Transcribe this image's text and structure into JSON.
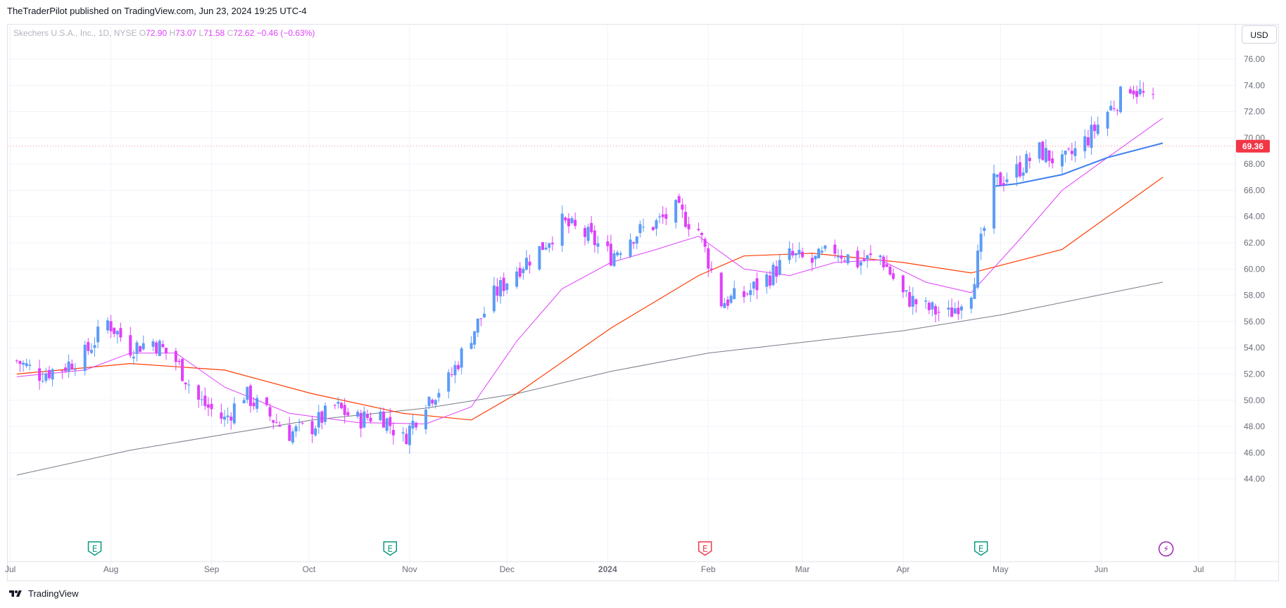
{
  "header": {
    "published": "TheTraderPilot published on TradingView.com, Jun 23, 2024 19:25 UTC-4"
  },
  "legend": {
    "symbol": "Skechers U.S.A., Inc., 1D, NYSE",
    "open_label": "O",
    "open": "72.90",
    "high_label": "H",
    "high": "73.07",
    "low_label": "L",
    "low": "71.58",
    "close_label": "C",
    "close": "72.62",
    "change": "−0.46 (−0.63%)"
  },
  "currency_button": "USD",
  "price_marker": "69.36",
  "footer": {
    "brand": "TradingView"
  },
  "colors": {
    "up": "#5b9cf6",
    "down": "#e040fb",
    "ma_fast": "#e040fb",
    "ma_blue": "#3d7ff0",
    "ma_mid": "#ff3d00",
    "ma_slow": "#787b86",
    "price_marker": "#f23645"
  },
  "events": [
    {
      "type": "earnings",
      "label": "E",
      "x_month": "Jul 2023 end",
      "color": "#089981"
    },
    {
      "type": "earnings",
      "label": "E",
      "x_month": "Oct 2023 end",
      "color": "#089981"
    },
    {
      "type": "earnings",
      "label": "E",
      "x_month": "Jan 2024 end",
      "color": "#f23645"
    },
    {
      "type": "earnings",
      "label": "E",
      "x_month": "Apr 2024 end",
      "color": "#089981"
    },
    {
      "type": "dividend-flash",
      "label": "⚡",
      "x_month": "Jun 2024 end",
      "color": "#9c27b0"
    }
  ],
  "chart_data": {
    "type": "candlestick",
    "title": "",
    "x_tick_labels": [
      "Jul",
      "Aug",
      "Sep",
      "Oct",
      "Nov",
      "Dec",
      "2024",
      "Feb",
      "Mar",
      "Apr",
      "May",
      "Jun",
      "Jul"
    ],
    "y_tick_labels": [
      "44.00",
      "46.00",
      "48.00",
      "50.00",
      "52.00",
      "54.00",
      "56.00",
      "58.00",
      "60.00",
      "62.00",
      "64.00",
      "66.00",
      "68.00",
      "70.00",
      "72.00",
      "74.00",
      "76.00"
    ],
    "ylim": [
      43.5,
      77.5
    ],
    "grid": true,
    "series": [
      {
        "name": "",
        "kind": "price",
        "approx_close_path": [
          [
            "2023-07-03",
            53.0
          ],
          [
            "2023-07-10",
            52.0
          ],
          [
            "2023-07-17",
            52.5
          ],
          [
            "2023-07-24",
            53.5
          ],
          [
            "2023-07-31",
            56.0
          ],
          [
            "2023-08-07",
            54.0
          ],
          [
            "2023-08-14",
            54.5
          ],
          [
            "2023-08-21",
            53.0
          ],
          [
            "2023-08-28",
            50.0
          ],
          [
            "2023-09-05",
            48.5
          ],
          [
            "2023-09-11",
            50.5
          ],
          [
            "2023-09-18",
            49.0
          ],
          [
            "2023-09-25",
            47.5
          ],
          [
            "2023-10-02",
            48.0
          ],
          [
            "2023-10-09",
            49.5
          ],
          [
            "2023-10-16",
            48.5
          ],
          [
            "2023-10-23",
            49.0
          ],
          [
            "2023-10-30",
            47.0
          ],
          [
            "2023-11-06",
            50.0
          ],
          [
            "2023-11-13",
            51.5
          ],
          [
            "2023-11-20",
            55.0
          ],
          [
            "2023-11-27",
            58.0
          ],
          [
            "2023-12-04",
            60.0
          ],
          [
            "2023-12-11",
            61.5
          ],
          [
            "2023-12-18",
            63.5
          ],
          [
            "2023-12-26",
            62.5
          ],
          [
            "2024-01-02",
            61.0
          ],
          [
            "2024-01-08",
            62.5
          ],
          [
            "2024-01-16",
            63.5
          ],
          [
            "2024-01-22",
            64.5
          ],
          [
            "2024-01-29",
            63.0
          ],
          [
            "2024-02-05",
            57.5
          ],
          [
            "2024-02-12",
            58.0
          ],
          [
            "2024-02-20",
            59.5
          ],
          [
            "2024-02-26",
            61.0
          ],
          [
            "2024-03-04",
            60.5
          ],
          [
            "2024-03-11",
            61.5
          ],
          [
            "2024-03-18",
            60.5
          ],
          [
            "2024-03-25",
            61.0
          ],
          [
            "2024-04-01",
            58.0
          ],
          [
            "2024-04-08",
            57.0
          ],
          [
            "2024-04-15",
            56.5
          ],
          [
            "2024-04-22",
            58.5
          ],
          [
            "2024-04-29",
            66.5
          ],
          [
            "2024-05-06",
            67.5
          ],
          [
            "2024-05-13",
            69.0
          ],
          [
            "2024-05-20",
            68.0
          ],
          [
            "2024-05-28",
            70.0
          ],
          [
            "2024-06-03",
            72.0
          ],
          [
            "2024-06-10",
            74.0
          ],
          [
            "2024-06-17",
            72.6
          ]
        ]
      },
      {
        "name": "",
        "kind": "ma_fast",
        "values": [
          [
            "2023-07-03",
            51.8
          ],
          [
            "2023-07-24",
            52.3
          ],
          [
            "2023-08-07",
            53.6
          ],
          [
            "2023-08-21",
            53.6
          ],
          [
            "2023-09-05",
            51.0
          ],
          [
            "2023-09-25",
            49.0
          ],
          [
            "2023-10-16",
            48.3
          ],
          [
            "2023-11-06",
            48.2
          ],
          [
            "2023-11-20",
            49.5
          ],
          [
            "2023-12-04",
            54.5
          ],
          [
            "2023-12-18",
            58.5
          ],
          [
            "2024-01-02",
            60.5
          ],
          [
            "2024-01-16",
            61.5
          ],
          [
            "2024-01-29",
            62.5
          ],
          [
            "2024-02-12",
            60.0
          ],
          [
            "2024-02-26",
            59.5
          ],
          [
            "2024-03-11",
            60.5
          ],
          [
            "2024-03-25",
            60.7
          ],
          [
            "2024-04-08",
            59.0
          ],
          [
            "2024-04-22",
            58.2
          ],
          [
            "2024-05-06",
            62.0
          ],
          [
            "2024-05-20",
            66.0
          ],
          [
            "2024-06-03",
            68.5
          ],
          [
            "2024-06-20",
            71.5
          ]
        ]
      },
      {
        "name": "",
        "kind": "ma_blue",
        "values": [
          [
            "2024-04-29",
            66.3
          ],
          [
            "2024-05-06",
            66.5
          ],
          [
            "2024-05-20",
            67.2
          ],
          [
            "2024-06-03",
            68.5
          ],
          [
            "2024-06-20",
            69.6
          ]
        ]
      },
      {
        "name": "",
        "kind": "ma_mid",
        "values": [
          [
            "2023-07-03",
            52.0
          ],
          [
            "2023-08-07",
            52.8
          ],
          [
            "2023-09-05",
            52.3
          ],
          [
            "2023-10-02",
            50.5
          ],
          [
            "2023-10-30",
            49.0
          ],
          [
            "2023-11-20",
            48.5
          ],
          [
            "2023-12-04",
            50.5
          ],
          [
            "2024-01-02",
            55.5
          ],
          [
            "2024-01-29",
            59.5
          ],
          [
            "2024-02-12",
            61.0
          ],
          [
            "2024-03-04",
            61.2
          ],
          [
            "2024-04-01",
            60.5
          ],
          [
            "2024-04-22",
            59.7
          ],
          [
            "2024-05-20",
            61.5
          ],
          [
            "2024-06-20",
            67.0
          ]
        ]
      },
      {
        "name": "",
        "kind": "ma_slow",
        "values": [
          [
            "2023-07-03",
            44.3
          ],
          [
            "2023-08-07",
            46.2
          ],
          [
            "2023-09-05",
            47.4
          ],
          [
            "2023-10-02",
            48.5
          ],
          [
            "2023-11-06",
            49.4
          ],
          [
            "2023-12-04",
            50.5
          ],
          [
            "2024-01-02",
            52.2
          ],
          [
            "2024-02-01",
            53.6
          ],
          [
            "2024-03-04",
            54.5
          ],
          [
            "2024-04-01",
            55.3
          ],
          [
            "2024-05-01",
            56.5
          ],
          [
            "2024-06-20",
            59.0
          ]
        ]
      }
    ],
    "last_price_marker": 69.36
  }
}
